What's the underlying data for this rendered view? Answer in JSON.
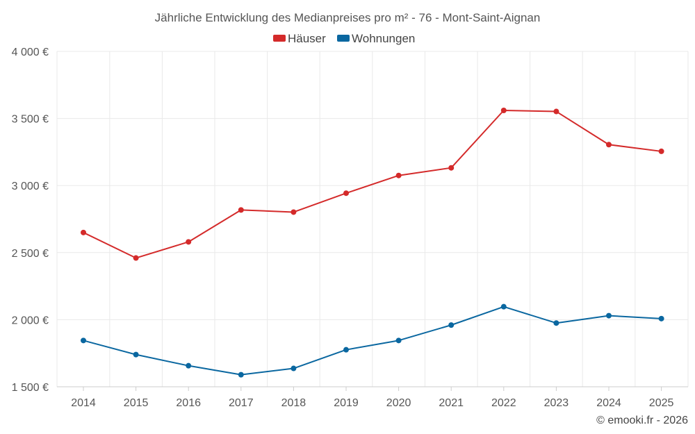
{
  "chart_data": {
    "type": "line",
    "title": "Jährliche Entwicklung des Medianpreises pro m² - 76 - Mont-Saint-Aignan",
    "x": [
      "2014",
      "2015",
      "2016",
      "2017",
      "2018",
      "2019",
      "2020",
      "2021",
      "2022",
      "2023",
      "2024",
      "2025"
    ],
    "ylim": [
      1500,
      4000
    ],
    "yticks": [
      1500,
      2000,
      2500,
      3000,
      3500,
      4000
    ],
    "ytick_labels": [
      "1 500 €",
      "2 000 €",
      "2 500 €",
      "3 000 €",
      "3 500 €",
      "4 000 €"
    ],
    "grid": true,
    "legend_position": "top-center",
    "series": [
      {
        "name": "Häuser",
        "color": "#d42a2a",
        "values": [
          2650,
          2460,
          2580,
          2818,
          2802,
          2943,
          3075,
          3132,
          3560,
          3552,
          3305,
          3255
        ]
      },
      {
        "name": "Wohnungen",
        "color": "#0a67a0",
        "values": [
          1845,
          1740,
          1657,
          1590,
          1637,
          1776,
          1845,
          1960,
          2097,
          1975,
          2030,
          2008
        ]
      }
    ],
    "credit": "© emooki.fr - 2026"
  }
}
